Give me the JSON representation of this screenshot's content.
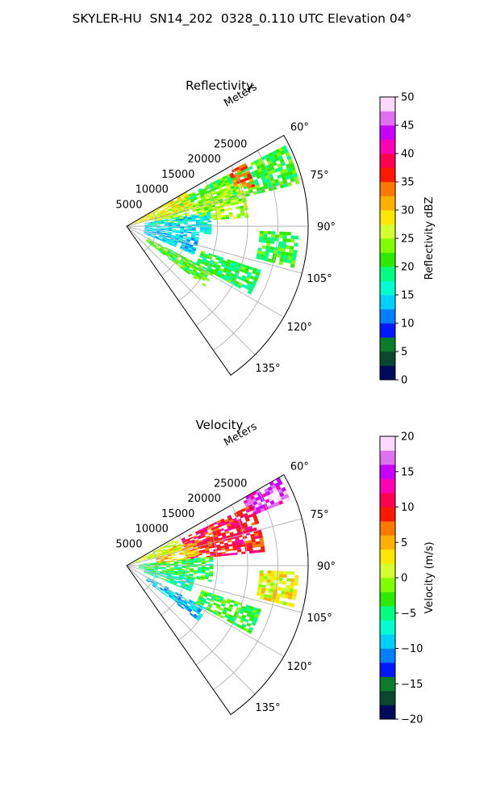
{
  "suptitle": "SKYLER-HU  SN14_202  0328_0.110 UTC Elevation 04°",
  "chart_data": [
    {
      "type": "heatmap",
      "subtype": "polar-sector-radar",
      "title": "Reflectivity",
      "radial_label": "Meters",
      "radial_ticks": [
        "5000",
        "10000",
        "15000",
        "20000",
        "25000"
      ],
      "angular_ticks": [
        "60°",
        "75°",
        "90°",
        "105°",
        "120°",
        "135°"
      ],
      "angular_range_deg": [
        60,
        145
      ],
      "radial_range_m": [
        0,
        30000
      ],
      "colorbar": {
        "label": "Reflectivity dBZ",
        "ticks": [
          "0",
          "5",
          "10",
          "15",
          "20",
          "25",
          "30",
          "35",
          "40",
          "45",
          "50"
        ],
        "range": [
          0,
          50
        ],
        "colors": [
          "#000a5a",
          "#0b4730",
          "#0b7c2a",
          "#0018ff",
          "#0080ff",
          "#00d0ff",
          "#00ffd0",
          "#00ff80",
          "#2eea00",
          "#80ff00",
          "#d6ff30",
          "#ffe600",
          "#ffb000",
          "#ff7800",
          "#ff1800",
          "#ff0050",
          "#ff00b4",
          "#c800ff",
          "#e070f0",
          "#ffd8ff"
        ]
      },
      "echo_regions": [
        {
          "theta": [
            63,
            76
          ],
          "range_m": [
            8000,
            29000
          ],
          "value": 21
        },
        {
          "theta": [
            62,
            72
          ],
          "range_m": [
            19000,
            22000
          ],
          "value": 34
        },
        {
          "theta": [
            68,
            86
          ],
          "range_m": [
            4000,
            20000
          ],
          "value": 25
        },
        {
          "theta": [
            60,
            74
          ],
          "range_m": [
            1000,
            11000
          ],
          "value": 28
        },
        {
          "theta": [
            80,
            95
          ],
          "range_m": [
            3000,
            14000
          ],
          "value": 15
        },
        {
          "theta": [
            95,
            112
          ],
          "range_m": [
            3000,
            12000
          ],
          "value": 14
        },
        {
          "theta": [
            118,
            127
          ],
          "range_m": [
            4000,
            16000
          ],
          "value": 22
        },
        {
          "theta": [
            108,
            118
          ],
          "range_m": [
            13000,
            23000
          ],
          "value": 20
        },
        {
          "theta": [
            92,
            103
          ],
          "range_m": [
            22000,
            28000
          ],
          "value": 21
        }
      ]
    },
    {
      "type": "heatmap",
      "subtype": "polar-sector-radar",
      "title": "Velocity",
      "radial_label": "Meters",
      "radial_ticks": [
        "5000",
        "10000",
        "15000",
        "20000",
        "25000"
      ],
      "angular_ticks": [
        "60°",
        "75°",
        "90°",
        "105°",
        "120°",
        "135°"
      ],
      "angular_range_deg": [
        60,
        145
      ],
      "radial_range_m": [
        0,
        30000
      ],
      "colorbar": {
        "label": "Velocity (m/s)",
        "ticks": [
          "−20",
          "−15",
          "−10",
          "−5",
          "0",
          "5",
          "10",
          "15",
          "20"
        ],
        "range": [
          -20,
          20
        ],
        "colors": [
          "#000a5a",
          "#0b4730",
          "#0b7c2a",
          "#0018ff",
          "#0080ff",
          "#00d0ff",
          "#00ffd0",
          "#00ff80",
          "#2eea00",
          "#80ff00",
          "#d6ff30",
          "#ffe600",
          "#ffb000",
          "#ff7800",
          "#ff1800",
          "#ff0050",
          "#ff00b4",
          "#c800ff",
          "#e070f0",
          "#ffd8ff"
        ]
      },
      "echo_regions": [
        {
          "theta": [
            60,
            68
          ],
          "range_m": [
            22000,
            29000
          ],
          "value": 16
        },
        {
          "theta": [
            64,
            84
          ],
          "range_m": [
            10000,
            23000
          ],
          "value": 10
        },
        {
          "theta": [
            68,
            86
          ],
          "range_m": [
            5000,
            12000
          ],
          "value": 4
        },
        {
          "theta": [
            62,
            74
          ],
          "range_m": [
            1000,
            9000
          ],
          "value": 1
        },
        {
          "theta": [
            84,
            100
          ],
          "range_m": [
            2000,
            14000
          ],
          "value": -4
        },
        {
          "theta": [
            100,
            112
          ],
          "range_m": [
            3000,
            11000
          ],
          "value": -6
        },
        {
          "theta": [
            118,
            127
          ],
          "range_m": [
            4000,
            15000
          ],
          "value": -9
        },
        {
          "theta": [
            108,
            118
          ],
          "range_m": [
            13000,
            23000
          ],
          "value": -3
        },
        {
          "theta": [
            92,
            103
          ],
          "range_m": [
            22000,
            28000
          ],
          "value": 2
        }
      ]
    }
  ]
}
